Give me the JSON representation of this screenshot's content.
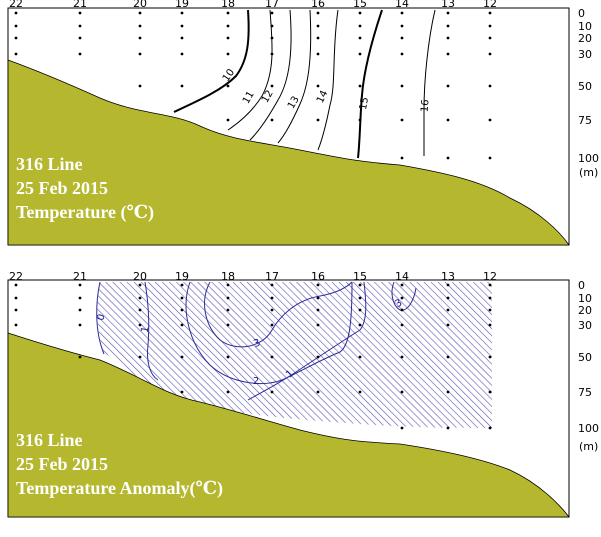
{
  "chart_data": [
    {
      "type": "contour",
      "title_lines": [
        "316 Line",
        "25  Feb 2015",
        "Temperature (℃)"
      ],
      "stations": [
        "22",
        "21",
        "20",
        "19",
        "18",
        "17",
        "16",
        "15",
        "14",
        "13",
        "12"
      ],
      "depth_ticks": [
        "0",
        "10",
        "20",
        "30",
        "50",
        "75",
        "100"
      ],
      "depth_unit": "(m)",
      "contour_levels": [
        "10",
        "11",
        "12",
        "13",
        "14",
        "15",
        "16"
      ],
      "bottom_color": "#b5b82e"
    },
    {
      "type": "contour",
      "title_lines": [
        "316 Line",
        "25  Feb 2015",
        "Temperature Anomaly(℃)"
      ],
      "stations": [
        "22",
        "21",
        "20",
        "19",
        "18",
        "17",
        "16",
        "15",
        "14",
        "13",
        "12"
      ],
      "depth_ticks": [
        "0",
        "10",
        "20",
        "30",
        "50",
        "75",
        "100"
      ],
      "depth_unit": "(m)",
      "contour_levels": [
        "0",
        "1",
        "3",
        "2",
        "1",
        "3"
      ],
      "hatched": "positive anomaly region",
      "contour_color": "#2b2b9a",
      "bottom_color": "#b5b82e"
    }
  ]
}
